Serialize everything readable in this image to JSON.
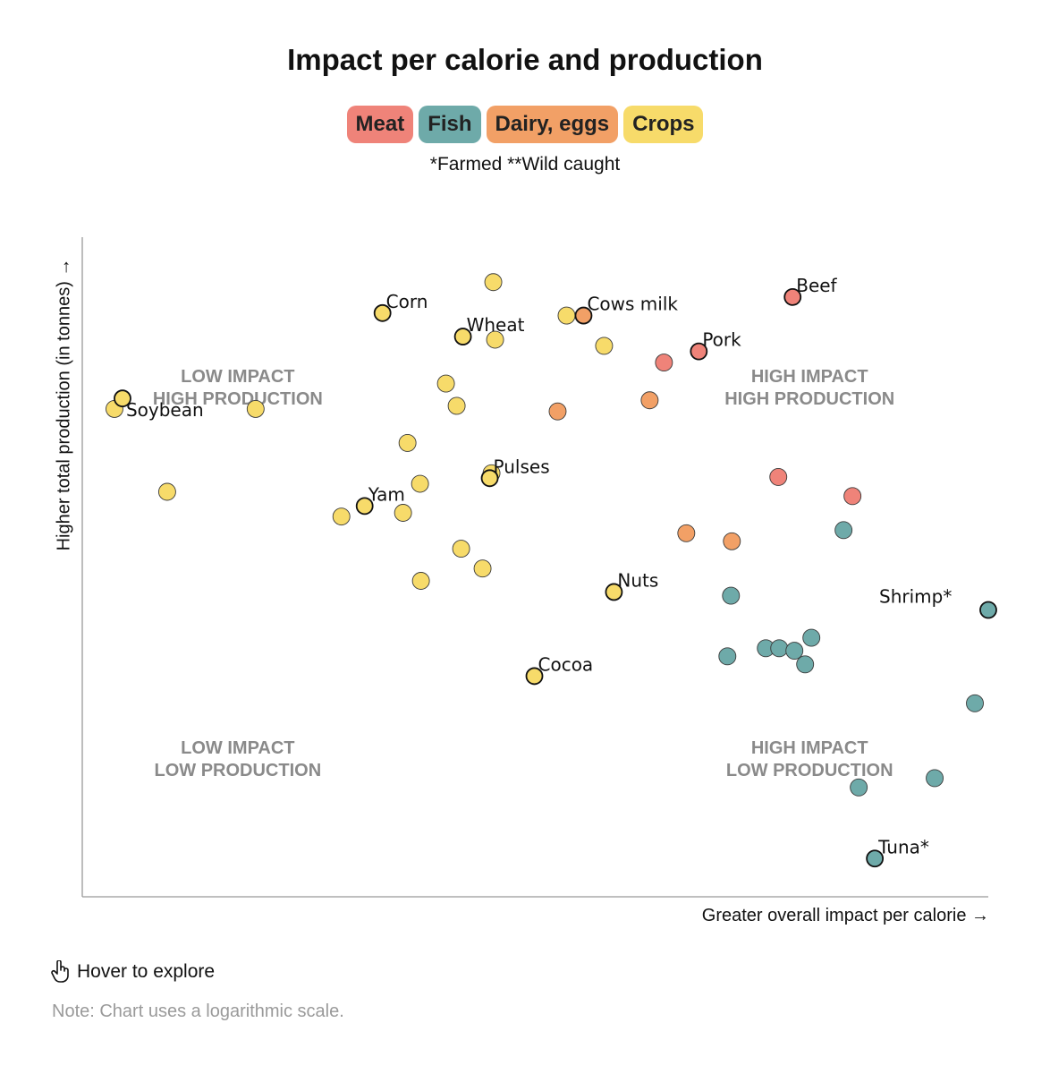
{
  "title": "Impact per calorie and production",
  "legend": [
    {
      "label": "Meat",
      "color": "#ef8379"
    },
    {
      "label": "Fish",
      "color": "#6eaaa9"
    },
    {
      "label": "Dairy, eggs",
      "color": "#f2a066"
    },
    {
      "label": "Crops",
      "color": "#f7db6a"
    }
  ],
  "footnote": "*Farmed **Wild caught",
  "hover_hint": "Hover to explore",
  "note": "Note: Chart uses a logarithmic scale.",
  "chart_data": {
    "type": "scatter",
    "title": "Impact per calorie and production",
    "xlabel": "Greater overall impact per calorie →",
    "ylabel": "Higher total production (in tonnes) →",
    "scale": "logarithmic",
    "axis_ticks": "none",
    "xlim": [
      0,
      100
    ],
    "ylim": [
      0,
      100
    ],
    "quadrants": [
      {
        "line1": "LOW IMPACT",
        "line2": "HIGH PRODUCTION",
        "x": 16,
        "y": 80
      },
      {
        "line1": "HIGH IMPACT",
        "line2": "HIGH PRODUCTION",
        "x": 80,
        "y": 80
      },
      {
        "line1": "LOW IMPACT",
        "line2": "LOW PRODUCTION",
        "x": 16,
        "y": 20
      },
      {
        "line1": "HIGH IMPACT",
        "line2": "LOW PRODUCTION",
        "x": 80,
        "y": 20
      }
    ],
    "series": [
      {
        "name": "Meat",
        "color": "#ef8379",
        "points": [
          {
            "x": 78.1,
            "y": 93.8,
            "label": "Beef"
          },
          {
            "x": 67.6,
            "y": 85.0,
            "label": "Pork"
          },
          {
            "x": 63.7,
            "y": 83.2
          },
          {
            "x": 76.5,
            "y": 64.7
          },
          {
            "x": 84.8,
            "y": 61.6
          }
        ]
      },
      {
        "name": "Fish",
        "color": "#6eaaa9",
        "points": [
          {
            "x": 100.0,
            "y": 43.2,
            "label": "Shrimp*"
          },
          {
            "x": 87.3,
            "y": 3.0,
            "label": "Tuna*"
          },
          {
            "x": 83.8,
            "y": 56.1
          },
          {
            "x": 71.2,
            "y": 45.5
          },
          {
            "x": 70.8,
            "y": 35.7
          },
          {
            "x": 75.1,
            "y": 37.0
          },
          {
            "x": 76.6,
            "y": 37.0
          },
          {
            "x": 78.3,
            "y": 36.6
          },
          {
            "x": 80.2,
            "y": 38.7
          },
          {
            "x": 79.5,
            "y": 34.4
          },
          {
            "x": 98.5,
            "y": 28.1
          },
          {
            "x": 94.0,
            "y": 16.0
          },
          {
            "x": 85.5,
            "y": 14.5
          }
        ]
      },
      {
        "name": "Dairy, eggs",
        "color": "#f2a066",
        "points": [
          {
            "x": 54.7,
            "y": 90.8,
            "label": "Cows milk"
          },
          {
            "x": 62.1,
            "y": 77.1
          },
          {
            "x": 51.8,
            "y": 75.3
          },
          {
            "x": 66.2,
            "y": 55.6
          },
          {
            "x": 71.3,
            "y": 54.3
          }
        ]
      },
      {
        "name": "Crops",
        "color": "#f7db6a",
        "points": [
          {
            "x": 32.2,
            "y": 91.2,
            "label": "Corn"
          },
          {
            "x": 41.2,
            "y": 87.4,
            "label": "Wheat"
          },
          {
            "x": 3.1,
            "y": 77.4,
            "label": "Soybean"
          },
          {
            "x": 44.2,
            "y": 64.5,
            "label": "Pulses"
          },
          {
            "x": 30.2,
            "y": 60.0,
            "label": "Yam"
          },
          {
            "x": 58.1,
            "y": 46.1,
            "label": "Nuts"
          },
          {
            "x": 49.2,
            "y": 32.5,
            "label": "Cocoa"
          },
          {
            "x": 44.6,
            "y": 96.2
          },
          {
            "x": 52.8,
            "y": 90.8
          },
          {
            "x": 44.8,
            "y": 86.9
          },
          {
            "x": 57.0,
            "y": 85.9
          },
          {
            "x": 39.3,
            "y": 79.8
          },
          {
            "x": 40.5,
            "y": 76.2
          },
          {
            "x": 2.2,
            "y": 75.7
          },
          {
            "x": 18.0,
            "y": 75.7
          },
          {
            "x": 35.0,
            "y": 70.2
          },
          {
            "x": 44.4,
            "y": 65.3
          },
          {
            "x": 36.4,
            "y": 63.6
          },
          {
            "x": 8.1,
            "y": 62.3
          },
          {
            "x": 27.6,
            "y": 58.3
          },
          {
            "x": 34.5,
            "y": 58.9
          },
          {
            "x": 41.0,
            "y": 53.1
          },
          {
            "x": 43.4,
            "y": 49.9
          },
          {
            "x": 36.5,
            "y": 47.9
          }
        ]
      }
    ]
  }
}
